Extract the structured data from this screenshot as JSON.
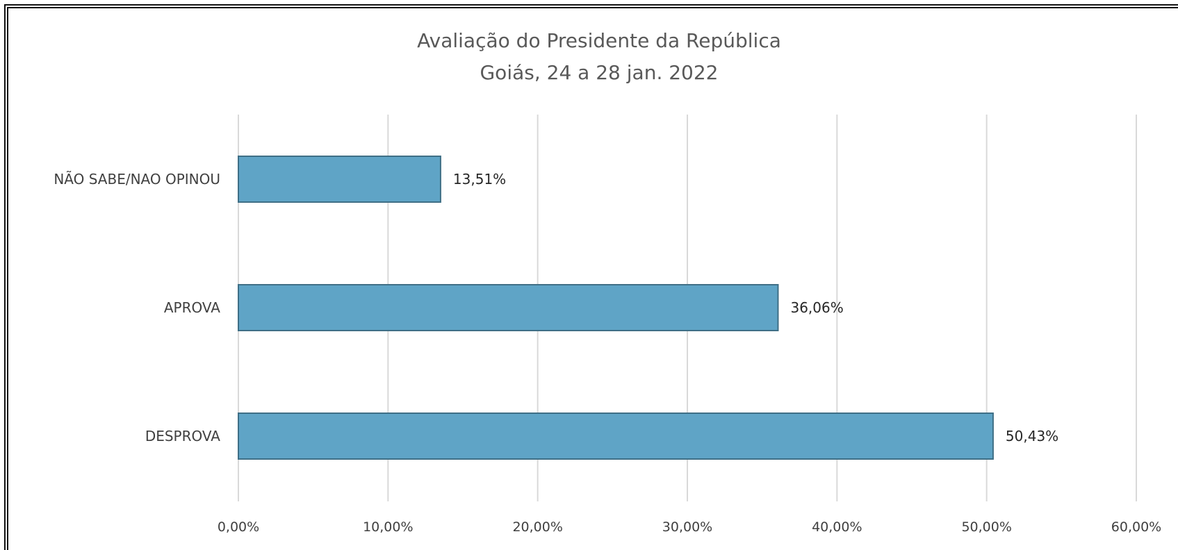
{
  "chart_data": {
    "type": "bar",
    "orientation": "horizontal",
    "title": "Avaliação do Presidente da República",
    "subtitle": "Goiás, 24 a 28 jan. 2022",
    "categories": [
      "NÃO SABE/NAO OPINOU",
      "APROVA",
      "DESPROVA"
    ],
    "values": [
      13.51,
      36.06,
      50.43
    ],
    "value_labels": [
      "13,51%",
      "36,06%",
      "50,43%"
    ],
    "xlim": [
      0,
      60
    ],
    "xticks": [
      0,
      10,
      20,
      30,
      40,
      50,
      60
    ],
    "xtick_labels": [
      "0,00%",
      "10,00%",
      "20,00%",
      "30,00%",
      "40,00%",
      "50,00%",
      "60,00%"
    ],
    "xlabel": "",
    "ylabel": "",
    "grid": true,
    "legend": "none",
    "bar_color": "#5fa4c6",
    "bar_edge_color": "#3f6f86",
    "grid_color": "#d9d9d9"
  }
}
